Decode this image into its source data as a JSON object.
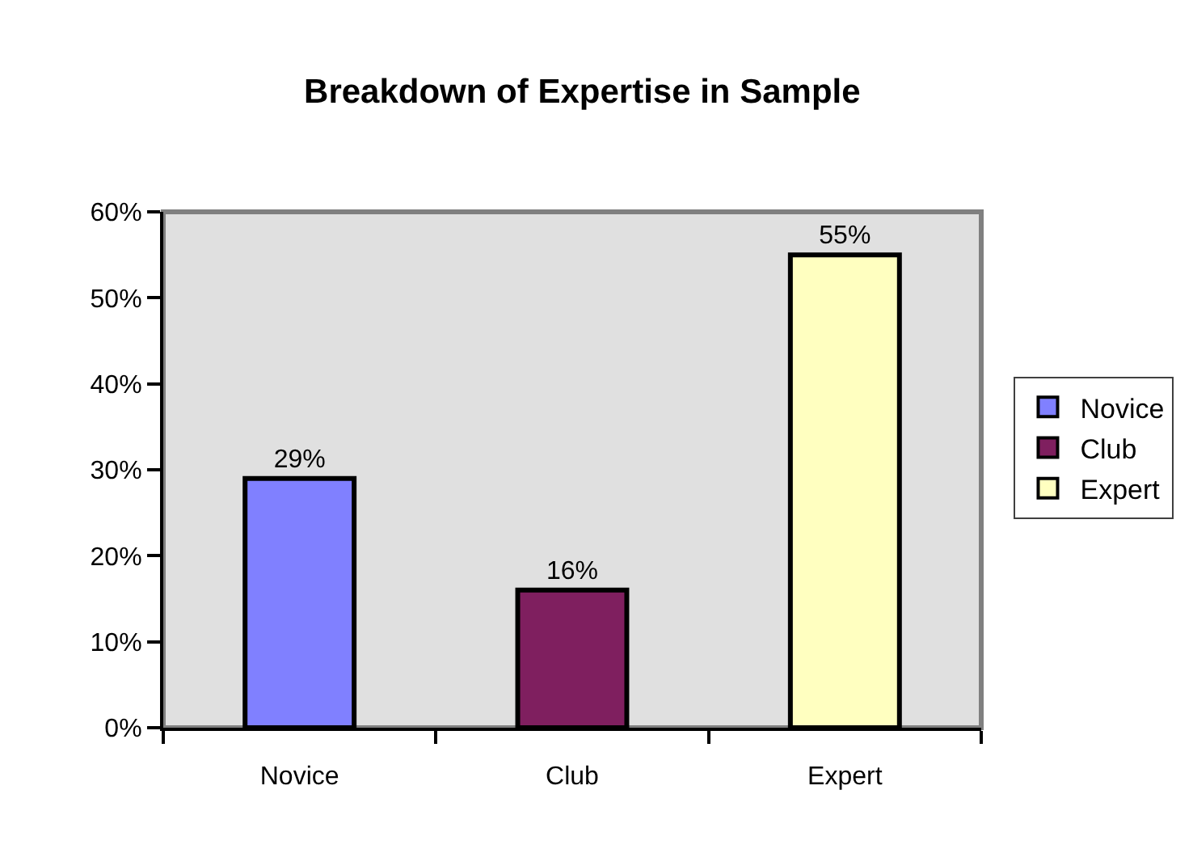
{
  "chart_data": {
    "type": "bar",
    "title": "Breakdown of Expertise in Sample",
    "categories": [
      "Novice",
      "Club",
      "Expert"
    ],
    "series": [
      {
        "name": "Novice",
        "color": "#8080ff",
        "values": [
          29,
          null,
          null
        ],
        "value_labels": [
          "29%",
          null,
          null
        ]
      },
      {
        "name": "Club",
        "color": "#7f1f5f",
        "values": [
          null,
          16,
          null
        ],
        "value_labels": [
          null,
          "16%",
          null
        ]
      },
      {
        "name": "Expert",
        "color": "#ffffc0",
        "values": [
          null,
          null,
          55
        ],
        "value_labels": [
          null,
          null,
          "55%"
        ]
      }
    ],
    "ylim": [
      0,
      60
    ],
    "yticks": [
      {
        "value": 0,
        "label": "0%"
      },
      {
        "value": 10,
        "label": "10%"
      },
      {
        "value": 20,
        "label": "20%"
      },
      {
        "value": 30,
        "label": "30%"
      },
      {
        "value": 40,
        "label": "40%"
      },
      {
        "value": 50,
        "label": "50%"
      },
      {
        "value": 60,
        "label": "60%"
      }
    ],
    "grid": false,
    "legend": "right"
  }
}
